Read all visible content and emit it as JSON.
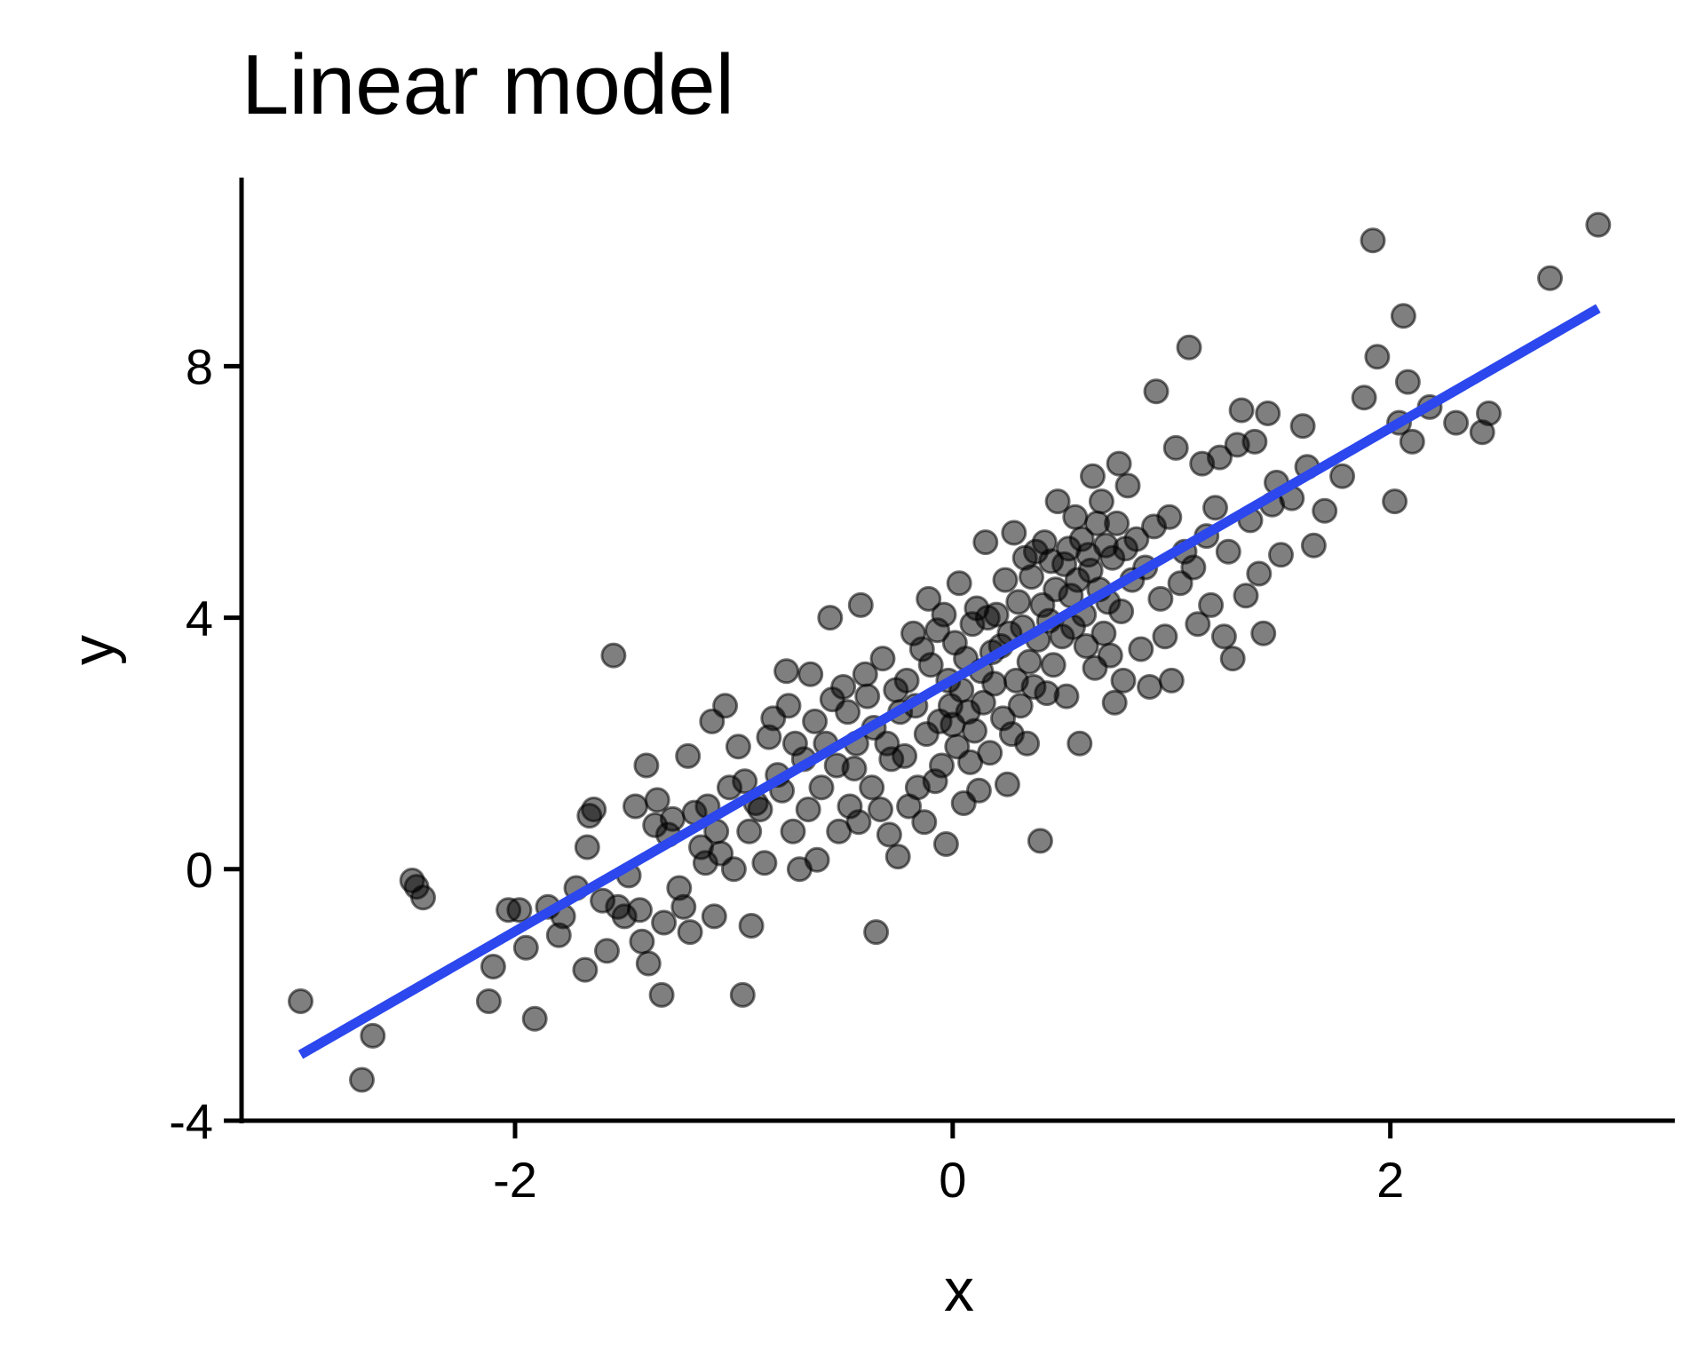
{
  "chart_data": {
    "type": "scatter",
    "title": "Linear model",
    "xlabel": "x",
    "ylabel": "y",
    "xlim": [
      -3.25,
      3.3
    ],
    "ylim": [
      -4,
      11
    ],
    "x_ticks": [
      -2,
      0,
      2
    ],
    "x_tick_labels": [
      "-2",
      "0",
      "2"
    ],
    "y_ticks": [
      -4,
      0,
      4,
      8
    ],
    "y_tick_labels": [
      "-4",
      "0",
      "4",
      "8"
    ],
    "grid": false,
    "legend": "none",
    "colors": {
      "points": "#000000",
      "point_opacity": 0.5,
      "fit_line": "#2b47ed"
    },
    "series": [
      {
        "kind": "points",
        "points": [
          [
            -2.98,
            -2.1
          ],
          [
            -2.7,
            -3.35
          ],
          [
            -2.65,
            -2.65
          ],
          [
            -2.47,
            -0.18
          ],
          [
            -2.45,
            -0.28
          ],
          [
            -2.42,
            -0.45
          ],
          [
            -2.12,
            -2.1
          ],
          [
            -2.1,
            -1.55
          ],
          [
            -2.03,
            -0.65
          ],
          [
            -1.98,
            -0.65
          ],
          [
            -1.95,
            -1.25
          ],
          [
            -1.91,
            -2.38
          ],
          [
            -1.85,
            -0.6
          ],
          [
            -1.8,
            -1.05
          ],
          [
            -1.78,
            -0.75
          ],
          [
            -1.72,
            -0.3
          ],
          [
            -1.68,
            -1.6
          ],
          [
            -1.67,
            0.35
          ],
          [
            -1.66,
            0.85
          ],
          [
            -1.64,
            0.95
          ],
          [
            -1.6,
            -0.5
          ],
          [
            -1.58,
            -1.3
          ],
          [
            -1.55,
            3.4
          ],
          [
            -1.53,
            -0.6
          ],
          [
            -1.5,
            -0.75
          ],
          [
            -1.48,
            -0.1
          ],
          [
            -1.45,
            1.0
          ],
          [
            -1.43,
            -0.65
          ],
          [
            -1.42,
            -1.15
          ],
          [
            -1.4,
            1.65
          ],
          [
            -1.39,
            -1.5
          ],
          [
            -1.36,
            0.7
          ],
          [
            -1.35,
            1.1
          ],
          [
            -1.33,
            -2.0
          ],
          [
            -1.32,
            -0.85
          ],
          [
            -1.3,
            0.55
          ],
          [
            -1.28,
            0.8
          ],
          [
            -1.25,
            -0.3
          ],
          [
            -1.23,
            -0.6
          ],
          [
            -1.21,
            1.8
          ],
          [
            -1.2,
            -1.0
          ],
          [
            -1.18,
            0.9
          ],
          [
            -1.15,
            0.35
          ],
          [
            -1.13,
            0.1
          ],
          [
            -1.12,
            1.0
          ],
          [
            -1.1,
            2.35
          ],
          [
            -1.09,
            -0.75
          ],
          [
            -1.08,
            0.6
          ],
          [
            -1.06,
            0.25
          ],
          [
            -1.04,
            2.6
          ],
          [
            -1.02,
            1.3
          ],
          [
            -1.0,
            0.0
          ],
          [
            -0.98,
            1.95
          ],
          [
            -0.96,
            -2.0
          ],
          [
            -0.95,
            1.4
          ],
          [
            -0.93,
            0.6
          ],
          [
            -0.92,
            -0.9
          ],
          [
            -0.9,
            1.05
          ],
          [
            -0.88,
            0.95
          ],
          [
            -0.86,
            0.1
          ],
          [
            -0.84,
            2.1
          ],
          [
            -0.82,
            2.4
          ],
          [
            -0.8,
            1.5
          ],
          [
            -0.78,
            1.25
          ],
          [
            -0.76,
            3.15
          ],
          [
            -0.75,
            2.6
          ],
          [
            -0.73,
            0.6
          ],
          [
            -0.72,
            2.0
          ],
          [
            -0.7,
            0.0
          ],
          [
            -0.68,
            1.75
          ],
          [
            -0.66,
            0.95
          ],
          [
            -0.65,
            3.1
          ],
          [
            -0.63,
            2.35
          ],
          [
            -0.62,
            0.15
          ],
          [
            -0.6,
            1.3
          ],
          [
            -0.58,
            2.0
          ],
          [
            -0.56,
            4.0
          ],
          [
            -0.55,
            2.7
          ],
          [
            -0.53,
            1.65
          ],
          [
            -0.52,
            0.6
          ],
          [
            -0.5,
            2.9
          ],
          [
            -0.48,
            2.5
          ],
          [
            -0.47,
            1.0
          ],
          [
            -0.45,
            1.6
          ],
          [
            -0.44,
            2.0
          ],
          [
            -0.43,
            0.75
          ],
          [
            -0.42,
            4.2
          ],
          [
            -0.4,
            3.1
          ],
          [
            -0.39,
            2.75
          ],
          [
            -0.37,
            1.3
          ],
          [
            -0.36,
            2.25
          ],
          [
            -0.35,
            -1.0
          ],
          [
            -0.33,
            0.95
          ],
          [
            -0.32,
            3.35
          ],
          [
            -0.3,
            2.0
          ],
          [
            -0.29,
            0.55
          ],
          [
            -0.28,
            1.75
          ],
          [
            -0.26,
            2.85
          ],
          [
            -0.25,
            0.2
          ],
          [
            -0.24,
            2.5
          ],
          [
            -0.22,
            1.8
          ],
          [
            -0.21,
            3.0
          ],
          [
            -0.2,
            1.0
          ],
          [
            -0.18,
            3.75
          ],
          [
            -0.17,
            2.6
          ],
          [
            -0.16,
            1.3
          ],
          [
            -0.14,
            3.5
          ],
          [
            -0.13,
            0.75
          ],
          [
            -0.12,
            2.15
          ],
          [
            -0.11,
            4.3
          ],
          [
            -0.1,
            3.25
          ],
          [
            -0.08,
            1.4
          ],
          [
            -0.07,
            3.8
          ],
          [
            -0.06,
            2.35
          ],
          [
            -0.05,
            1.65
          ],
          [
            -0.04,
            4.05
          ],
          [
            -0.03,
            0.4
          ],
          [
            -0.02,
            3.0
          ],
          [
            -0.01,
            2.6
          ],
          [
            0.0,
            2.3
          ],
          [
            0.01,
            3.6
          ],
          [
            0.02,
            1.95
          ],
          [
            0.03,
            4.55
          ],
          [
            0.04,
            2.85
          ],
          [
            0.05,
            1.05
          ],
          [
            0.06,
            3.35
          ],
          [
            0.07,
            2.5
          ],
          [
            0.08,
            1.7
          ],
          [
            0.09,
            3.9
          ],
          [
            0.1,
            2.2
          ],
          [
            0.11,
            4.15
          ],
          [
            0.12,
            1.25
          ],
          [
            0.13,
            3.15
          ],
          [
            0.14,
            2.65
          ],
          [
            0.15,
            5.2
          ],
          [
            0.16,
            4.0
          ],
          [
            0.17,
            1.85
          ],
          [
            0.18,
            3.45
          ],
          [
            0.19,
            2.95
          ],
          [
            0.2,
            4.05
          ],
          [
            0.22,
            3.55
          ],
          [
            0.23,
            2.4
          ],
          [
            0.24,
            4.6
          ],
          [
            0.25,
            1.35
          ],
          [
            0.26,
            3.75
          ],
          [
            0.27,
            2.15
          ],
          [
            0.28,
            5.35
          ],
          [
            0.29,
            3.0
          ],
          [
            0.3,
            4.25
          ],
          [
            0.31,
            2.6
          ],
          [
            0.32,
            3.85
          ],
          [
            0.33,
            4.95
          ],
          [
            0.34,
            2.0
          ],
          [
            0.35,
            3.3
          ],
          [
            0.36,
            4.65
          ],
          [
            0.37,
            2.9
          ],
          [
            0.38,
            5.05
          ],
          [
            0.39,
            3.65
          ],
          [
            0.4,
            0.45
          ],
          [
            0.41,
            4.2
          ],
          [
            0.42,
            5.2
          ],
          [
            0.43,
            2.8
          ],
          [
            0.44,
            3.95
          ],
          [
            0.45,
            4.9
          ],
          [
            0.46,
            3.25
          ],
          [
            0.47,
            4.45
          ],
          [
            0.48,
            5.85
          ],
          [
            0.5,
            3.7
          ],
          [
            0.51,
            4.85
          ],
          [
            0.52,
            2.75
          ],
          [
            0.53,
            5.1
          ],
          [
            0.54,
            4.35
          ],
          [
            0.55,
            3.85
          ],
          [
            0.56,
            5.6
          ],
          [
            0.57,
            4.6
          ],
          [
            0.58,
            2.0
          ],
          [
            0.59,
            5.25
          ],
          [
            0.6,
            4.05
          ],
          [
            0.61,
            3.55
          ],
          [
            0.62,
            5.0
          ],
          [
            0.63,
            4.75
          ],
          [
            0.64,
            6.25
          ],
          [
            0.65,
            3.2
          ],
          [
            0.66,
            5.5
          ],
          [
            0.67,
            4.45
          ],
          [
            0.68,
            5.85
          ],
          [
            0.69,
            3.75
          ],
          [
            0.7,
            5.15
          ],
          [
            0.71,
            4.25
          ],
          [
            0.72,
            3.4
          ],
          [
            0.73,
            4.95
          ],
          [
            0.74,
            2.65
          ],
          [
            0.75,
            5.5
          ],
          [
            0.76,
            6.45
          ],
          [
            0.77,
            4.1
          ],
          [
            0.78,
            3.0
          ],
          [
            0.79,
            5.1
          ],
          [
            0.8,
            6.1
          ],
          [
            0.82,
            4.6
          ],
          [
            0.84,
            5.25
          ],
          [
            0.86,
            3.5
          ],
          [
            0.88,
            4.8
          ],
          [
            0.9,
            2.9
          ],
          [
            0.92,
            5.45
          ],
          [
            0.93,
            7.6
          ],
          [
            0.95,
            4.3
          ],
          [
            0.97,
            3.7
          ],
          [
            0.99,
            5.6
          ],
          [
            1.0,
            3.0
          ],
          [
            1.02,
            6.7
          ],
          [
            1.04,
            4.55
          ],
          [
            1.06,
            5.05
          ],
          [
            1.08,
            8.3
          ],
          [
            1.1,
            4.8
          ],
          [
            1.12,
            3.9
          ],
          [
            1.14,
            6.45
          ],
          [
            1.16,
            5.3
          ],
          [
            1.18,
            4.2
          ],
          [
            1.2,
            5.75
          ],
          [
            1.22,
            6.55
          ],
          [
            1.24,
            3.7
          ],
          [
            1.26,
            5.05
          ],
          [
            1.28,
            3.35
          ],
          [
            1.3,
            6.75
          ],
          [
            1.32,
            7.3
          ],
          [
            1.34,
            4.35
          ],
          [
            1.36,
            5.55
          ],
          [
            1.38,
            6.8
          ],
          [
            1.4,
            4.7
          ],
          [
            1.42,
            3.75
          ],
          [
            1.44,
            7.25
          ],
          [
            1.46,
            5.8
          ],
          [
            1.48,
            6.15
          ],
          [
            1.5,
            5.0
          ],
          [
            1.55,
            5.9
          ],
          [
            1.6,
            7.05
          ],
          [
            1.62,
            6.4
          ],
          [
            1.65,
            5.15
          ],
          [
            1.7,
            5.7
          ],
          [
            1.78,
            6.25
          ],
          [
            1.88,
            7.5
          ],
          [
            1.92,
            10.0
          ],
          [
            1.94,
            8.15
          ],
          [
            2.02,
            5.85
          ],
          [
            2.04,
            7.1
          ],
          [
            2.06,
            8.8
          ],
          [
            2.08,
            7.75
          ],
          [
            2.1,
            6.8
          ],
          [
            2.18,
            7.35
          ],
          [
            2.3,
            7.1
          ],
          [
            2.42,
            6.95
          ],
          [
            2.45,
            7.25
          ],
          [
            2.73,
            9.4
          ],
          [
            2.95,
            10.25
          ]
        ]
      },
      {
        "kind": "fit_line",
        "x": [
          -2.98,
          2.95
        ],
        "y": [
          -2.95,
          8.92
        ]
      }
    ]
  }
}
